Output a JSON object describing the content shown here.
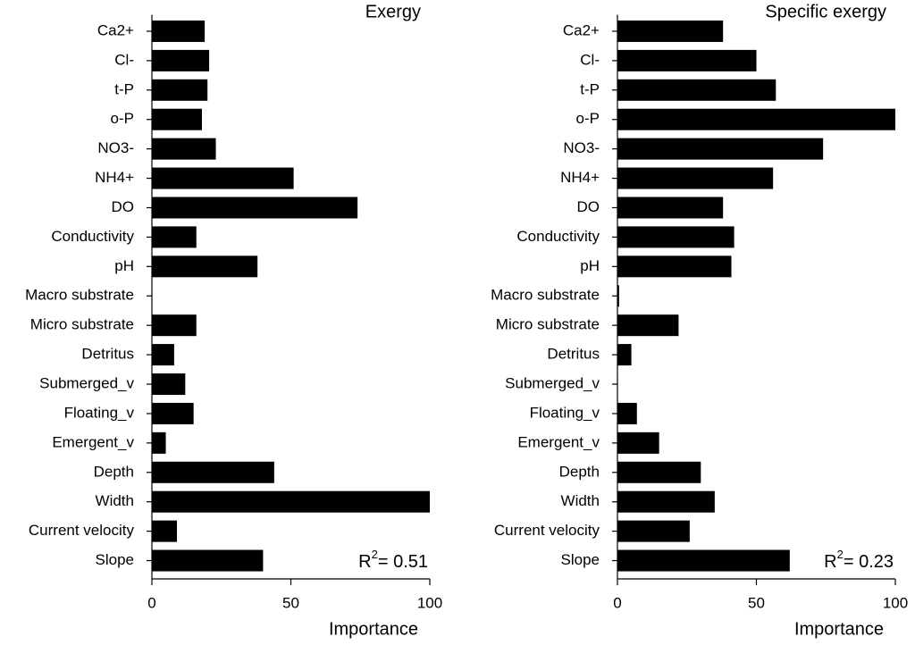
{
  "chart_data": [
    {
      "type": "bar",
      "orientation": "horizontal",
      "title": "Exergy",
      "xlabel": "Importance",
      "categories": [
        "Ca2+",
        "Cl-",
        "t-P",
        "o-P",
        "NO3-",
        "NH4+",
        "DO",
        "Conductivity",
        "pH",
        "Macro substrate",
        "Micro substrate",
        "Detritus",
        "Submerged_v",
        "Floating_v",
        "Emergent_v",
        "Depth",
        "Width",
        "Current velocity",
        "Slope"
      ],
      "values": [
        19,
        20.6,
        20,
        18,
        23,
        51,
        74,
        16,
        38,
        0,
        16,
        8,
        12,
        15,
        5,
        44,
        100,
        9,
        40
      ],
      "color": "#000000",
      "xlim": [
        0,
        100
      ],
      "xticks": [
        0,
        50,
        100
      ],
      "annotation": {
        "base": "R",
        "sup": "2",
        "rest": "= 0.51"
      }
    },
    {
      "type": "bar",
      "orientation": "horizontal",
      "title": "Specific exergy",
      "xlabel": "Importance",
      "categories": [
        "Ca2+",
        "Cl-",
        "t-P",
        "o-P",
        "NO3-",
        "NH4+",
        "DO",
        "Conductivity",
        "pH",
        "Macro substrate",
        "Micro substrate",
        "Detritus",
        "Submerged_v",
        "Floating_v",
        "Emergent_v",
        "Depth",
        "Width",
        "Current velocity",
        "Slope"
      ],
      "values": [
        38,
        50,
        57,
        100,
        74,
        56,
        38,
        42,
        41,
        0.6,
        22,
        5,
        0,
        7,
        15,
        30,
        35,
        26,
        62
      ],
      "color": "#000000",
      "xlim": [
        0,
        100
      ],
      "xticks": [
        0,
        50,
        100
      ],
      "annotation": {
        "base": "R",
        "sup": "2",
        "rest": "= 0.23"
      }
    }
  ]
}
